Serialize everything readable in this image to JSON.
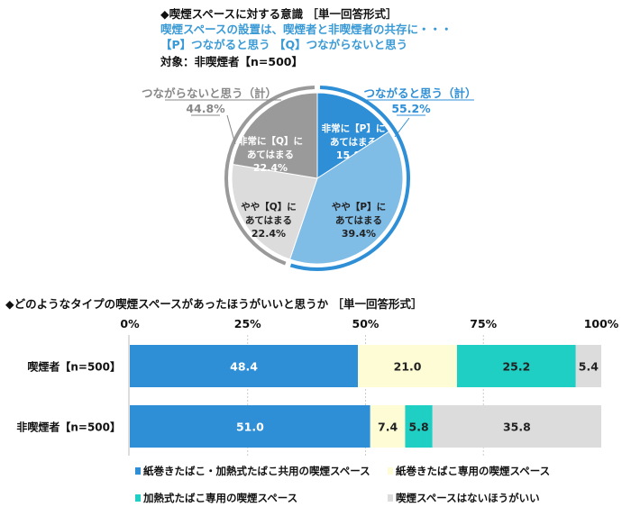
{
  "chart_data": [
    {
      "type": "pie",
      "title": "◆喫煙スペースに対する意識 ［単一回答形式］",
      "subtitle_lines": [
        "喫煙スペースの設置は、喫煙者と非喫煙者の共存に・・・",
        "【P】つながると思う 【Q】つながらないと思う"
      ],
      "target": "対象：非喫煙者【n=500】",
      "slices": [
        {
          "label_lines": [
            "非常に【P】に",
            "あてはまる"
          ],
          "value": 15.8,
          "value_label": "15.8%",
          "color": "#2f8fd6",
          "text_color": "#ffffff"
        },
        {
          "label_lines": [
            "やや【P】に",
            "あてはまる"
          ],
          "value": 39.4,
          "value_label": "39.4%",
          "color": "#7fbce6",
          "text_color": "#222222"
        },
        {
          "label_lines": [
            "やや【Q】に",
            "あてはまる"
          ],
          "value": 22.4,
          "value_label": "22.4%",
          "color": "#dcdcdc",
          "text_color": "#222222"
        },
        {
          "label_lines": [
            "非常に【Q】に",
            "あてはまる"
          ],
          "value": 22.4,
          "value_label": "22.4%",
          "color": "#9a9a9a",
          "text_color": "#ffffff"
        }
      ],
      "groups": [
        {
          "label": "つながると思う（計）",
          "value_label": "55.2%",
          "value": 55.2,
          "color": "#2f8fd6"
        },
        {
          "label": "つながらないと思う（計）",
          "value_label": "44.8%",
          "value": 44.8,
          "color": "#9a9a9a"
        }
      ]
    },
    {
      "type": "bar",
      "orientation": "horizontal-stacked",
      "title": "◆どのようなタイプの喫煙スペースがあったほうがいいと思うか ［単一回答形式］",
      "xlim": [
        0,
        100
      ],
      "xticks": [
        "0%",
        "25%",
        "50%",
        "75%",
        "100%"
      ],
      "grid": true,
      "legend_position": "bottom",
      "categories": [
        "喫煙者【n=500】",
        "非喫煙者【n=500】"
      ],
      "series": [
        {
          "name": "紙巻きたばこ・加熱式たばこ共用の喫煙スペース",
          "values": [
            48.4,
            51.0
          ],
          "labels": [
            "48.4",
            "51.0"
          ],
          "color": "#2f8fd6",
          "text_color": "#ffffff"
        },
        {
          "name": "紙巻きたばこ専用の喫煙スペース",
          "values": [
            21.0,
            7.4
          ],
          "labels": [
            "21.0",
            "7.4"
          ],
          "color": "#fdfcd4",
          "text_color": "#222222"
        },
        {
          "name": "加熱式たばこ専用の喫煙スペース",
          "values": [
            25.2,
            5.8
          ],
          "labels": [
            "25.2",
            "5.8"
          ],
          "color": "#1fcfc4",
          "text_color": "#222222"
        },
        {
          "name": "喫煙スペースはないほうがいい",
          "values": [
            5.4,
            35.8
          ],
          "labels": [
            "5.4",
            "35.8"
          ],
          "color": "#dcdcdc",
          "text_color": "#222222"
        }
      ]
    }
  ]
}
